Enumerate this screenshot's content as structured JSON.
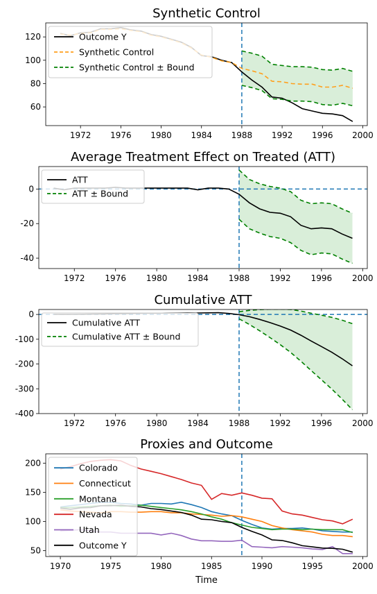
{
  "chart_data": [
    {
      "type": "line",
      "title": "Synthetic Control",
      "xlabel": "",
      "ylabel": "",
      "xlim": [
        1968.55,
        2000.45
      ],
      "ylim": [
        44,
        132
      ],
      "xticks": [
        1972,
        1976,
        1980,
        1984,
        1988,
        1992,
        1996,
        2000
      ],
      "yticks": [
        60,
        80,
        100,
        120
      ],
      "grid": false,
      "legend_position": "upper-left",
      "vline_x": 1988,
      "x": [
        1970,
        1971,
        1972,
        1973,
        1974,
        1975,
        1976,
        1977,
        1978,
        1979,
        1980,
        1981,
        1982,
        1983,
        1984,
        1985,
        1986,
        1987,
        1988,
        1989,
        1990,
        1991,
        1992,
        1993,
        1994,
        1995,
        1996,
        1997,
        1998,
        1999
      ],
      "series": [
        {
          "name": "Outcome Y",
          "color": "#000000",
          "style": "solid",
          "values": [
            123.0,
            121.0,
            123.5,
            124.0,
            127.0,
            127.0,
            128.0,
            126.0,
            125.0,
            122.0,
            120.5,
            118.0,
            115.5,
            111.0,
            104.0,
            103.0,
            100.0,
            98.0,
            90.0,
            83.0,
            77.0,
            68.5,
            67.5,
            63.5,
            58.5,
            56.5,
            54.5,
            54.0,
            52.5,
            47.5
          ]
        },
        {
          "name": "Synthetic Control",
          "color": "#ff9f1c",
          "style": "dashed",
          "values": [
            122.5,
            121.5,
            123.0,
            123.5,
            126.5,
            126.5,
            127.0,
            125.5,
            124.5,
            121.5,
            120.0,
            117.5,
            115.0,
            110.5,
            104.5,
            102.5,
            99.5,
            98.0,
            93.0,
            91.0,
            88.5,
            82.0,
            81.5,
            80.0,
            79.5,
            79.5,
            77.0,
            77.0,
            78.5,
            76.0
          ]
        },
        {
          "name": "Synthetic Control ± Bound",
          "color": "#008000",
          "style": "dashed",
          "role": "band",
          "upper": [
            108.0,
            106.0,
            103.5,
            96.5,
            95.5,
            94.5,
            94.5,
            94.0,
            92.0,
            91.5,
            93.0,
            90.5
          ],
          "lower": [
            78.5,
            76.5,
            74.0,
            67.0,
            66.5,
            65.0,
            65.0,
            64.5,
            62.0,
            61.5,
            63.0,
            61.0
          ],
          "band_x": [
            1988,
            1989,
            1990,
            1991,
            1992,
            1993,
            1994,
            1995,
            1996,
            1997,
            1998,
            1999
          ]
        }
      ]
    },
    {
      "type": "line",
      "title": "Average Treatment Effect on Treated (ATT)",
      "xlabel": "",
      "ylabel": "",
      "xlim": [
        1968.55,
        2000.45
      ],
      "ylim": [
        -46,
        13
      ],
      "xticks": [
        1972,
        1976,
        1980,
        1984,
        1988,
        1992,
        1996,
        2000
      ],
      "yticks": [
        -40,
        -20,
        0
      ],
      "grid": false,
      "legend_position": "upper-left",
      "vline_x": 1988,
      "hline_y": 0,
      "x": [
        1970,
        1971,
        1972,
        1973,
        1974,
        1975,
        1976,
        1977,
        1978,
        1979,
        1980,
        1981,
        1982,
        1983,
        1984,
        1985,
        1986,
        1987,
        1988,
        1989,
        1990,
        1991,
        1992,
        1993,
        1994,
        1995,
        1996,
        1997,
        1998,
        1999
      ],
      "series": [
        {
          "name": "ATT",
          "color": "#000000",
          "style": "solid",
          "values": [
            0.5,
            -0.5,
            0.5,
            0.5,
            0.5,
            0.5,
            1.0,
            0.5,
            0.5,
            0.5,
            0.5,
            0.5,
            0.5,
            0.5,
            -0.5,
            0.5,
            0.5,
            0.0,
            -3.0,
            -8.0,
            -11.5,
            -13.5,
            -14.0,
            -16.0,
            -21.0,
            -23.0,
            -22.5,
            -23.0,
            -26.0,
            -28.5
          ]
        },
        {
          "name": "ATT ± Bound",
          "color": "#008000",
          "style": "dashed",
          "role": "band",
          "upper": [
            11.0,
            5.5,
            3.0,
            1.5,
            0.5,
            -1.5,
            -6.5,
            -8.5,
            -8.0,
            -8.5,
            -11.5,
            -14.0
          ],
          "lower": [
            -17.5,
            -23.0,
            -25.5,
            -27.5,
            -28.5,
            -31.0,
            -35.5,
            -38.0,
            -37.0,
            -37.5,
            -40.5,
            -43.0
          ],
          "band_x": [
            1988,
            1989,
            1990,
            1991,
            1992,
            1993,
            1994,
            1995,
            1996,
            1997,
            1998,
            1999
          ]
        }
      ]
    },
    {
      "type": "line",
      "title": "Cumulative ATT",
      "xlabel": "",
      "ylabel": "",
      "xlim": [
        1968.55,
        2000.45
      ],
      "ylim": [
        -400,
        20
      ],
      "xticks": [
        1972,
        1976,
        1980,
        1984,
        1988,
        1992,
        1996,
        2000
      ],
      "yticks": [
        -400,
        -300,
        -200,
        -100,
        0
      ],
      "grid": false,
      "legend_position": "upper-left",
      "vline_x": 1988,
      "hline_y": 0,
      "x": [
        1970,
        1971,
        1972,
        1973,
        1974,
        1975,
        1976,
        1977,
        1978,
        1979,
        1980,
        1981,
        1982,
        1983,
        1984,
        1985,
        1986,
        1987,
        1988,
        1989,
        1990,
        1991,
        1992,
        1993,
        1994,
        1995,
        1996,
        1997,
        1998,
        1999
      ],
      "series": [
        {
          "name": "Cumulative ATT",
          "color": "#000000",
          "style": "solid",
          "values": [
            0.5,
            0.0,
            0.5,
            1.0,
            1.5,
            2.0,
            3.0,
            3.5,
            4.0,
            4.5,
            5.0,
            5.5,
            6.0,
            6.5,
            6.0,
            6.5,
            7.0,
            4.0,
            -1.0,
            -9.0,
            -20.0,
            -33.0,
            -47.0,
            -63.0,
            -84.0,
            -107.0,
            -129.5,
            -152.5,
            -178.5,
            -207.0
          ]
        },
        {
          "name": "Cumulative ATT ± Bound",
          "color": "#008000",
          "style": "dashed",
          "role": "band",
          "upper": [
            11.0,
            16.5,
            19.5,
            21.0,
            21.5,
            20.0,
            13.5,
            5.0,
            -3.0,
            -11.5,
            -23.0,
            -37.0
          ],
          "lower": [
            -17.5,
            -40.5,
            -66.0,
            -93.5,
            -122.0,
            -153.0,
            -188.5,
            -226.5,
            -263.5,
            -301.0,
            -341.5,
            -384.5
          ],
          "band_x": [
            1988,
            1989,
            1990,
            1991,
            1992,
            1993,
            1994,
            1995,
            1996,
            1997,
            1998,
            1999
          ]
        }
      ]
    },
    {
      "type": "line",
      "title": "Proxies and Outcome",
      "xlabel": "Time",
      "ylabel": "",
      "xlim": [
        1968.55,
        2000.45
      ],
      "ylim": [
        40,
        216
      ],
      "xticks": [
        1970,
        1975,
        1980,
        1985,
        1990,
        1995,
        2000
      ],
      "yticks": [
        50,
        100,
        150,
        200
      ],
      "grid": false,
      "legend_position": "upper-left",
      "vline_x": 1988,
      "x": [
        1970,
        1971,
        1972,
        1973,
        1974,
        1975,
        1976,
        1977,
        1978,
        1979,
        1980,
        1981,
        1982,
        1983,
        1984,
        1985,
        1986,
        1987,
        1988,
        1989,
        1990,
        1991,
        1992,
        1993,
        1994,
        1995,
        1996,
        1997,
        1998,
        1999
      ],
      "series": [
        {
          "name": "Colorado",
          "color": "#1f77b4",
          "values": [
            125,
            127,
            129,
            131,
            133,
            133,
            131,
            130,
            128,
            131,
            131,
            130,
            133,
            129,
            124,
            117,
            113,
            110,
            102,
            95,
            89,
            87,
            88,
            88,
            89,
            87,
            84,
            83,
            82,
            82
          ]
        },
        {
          "name": "Connecticut",
          "color": "#ff7f0e",
          "values": [
            120,
            118,
            117,
            116,
            115,
            117,
            117,
            116,
            116,
            117,
            117,
            115,
            115,
            113,
            112,
            111,
            109,
            110,
            108,
            104,
            100,
            93,
            89,
            86,
            84,
            82,
            78,
            76,
            76,
            74
          ]
        },
        {
          "name": "Montana",
          "color": "#2ca02c",
          "values": [
            124,
            124,
            125,
            126,
            127,
            128,
            126,
            127,
            128,
            126,
            124,
            122,
            120,
            117,
            113,
            108,
            104,
            98,
            94,
            90,
            88,
            86,
            87,
            87,
            86,
            87,
            86,
            86,
            86,
            81
          ]
        },
        {
          "name": "Nevada",
          "color": "#d62728",
          "values": [
            190,
            194,
            199,
            203,
            205,
            206,
            204,
            196,
            190,
            186,
            182,
            177,
            172,
            166,
            162,
            138,
            148,
            145,
            149,
            145,
            140,
            139,
            118,
            113,
            111,
            107,
            103,
            101,
            96,
            104
          ]
        },
        {
          "name": "Utah",
          "color": "#9467bd",
          "values": [
            84,
            85,
            86,
            84,
            82,
            82,
            80,
            80,
            80,
            80,
            77,
            80,
            76,
            70,
            67,
            67,
            66,
            66,
            68,
            57,
            56,
            55,
            57,
            56,
            55,
            53,
            52,
            57,
            45,
            45
          ]
        },
        {
          "name": "Outcome Y",
          "color": "#000000",
          "values": [
            123,
            121,
            123.5,
            124,
            127,
            127,
            128,
            126,
            125,
            122,
            120.5,
            118,
            115.5,
            111,
            104,
            103,
            100,
            98,
            90,
            83,
            77,
            68.5,
            67.5,
            63.5,
            58.5,
            56.5,
            54.5,
            54,
            52.5,
            47.5
          ]
        }
      ]
    }
  ]
}
